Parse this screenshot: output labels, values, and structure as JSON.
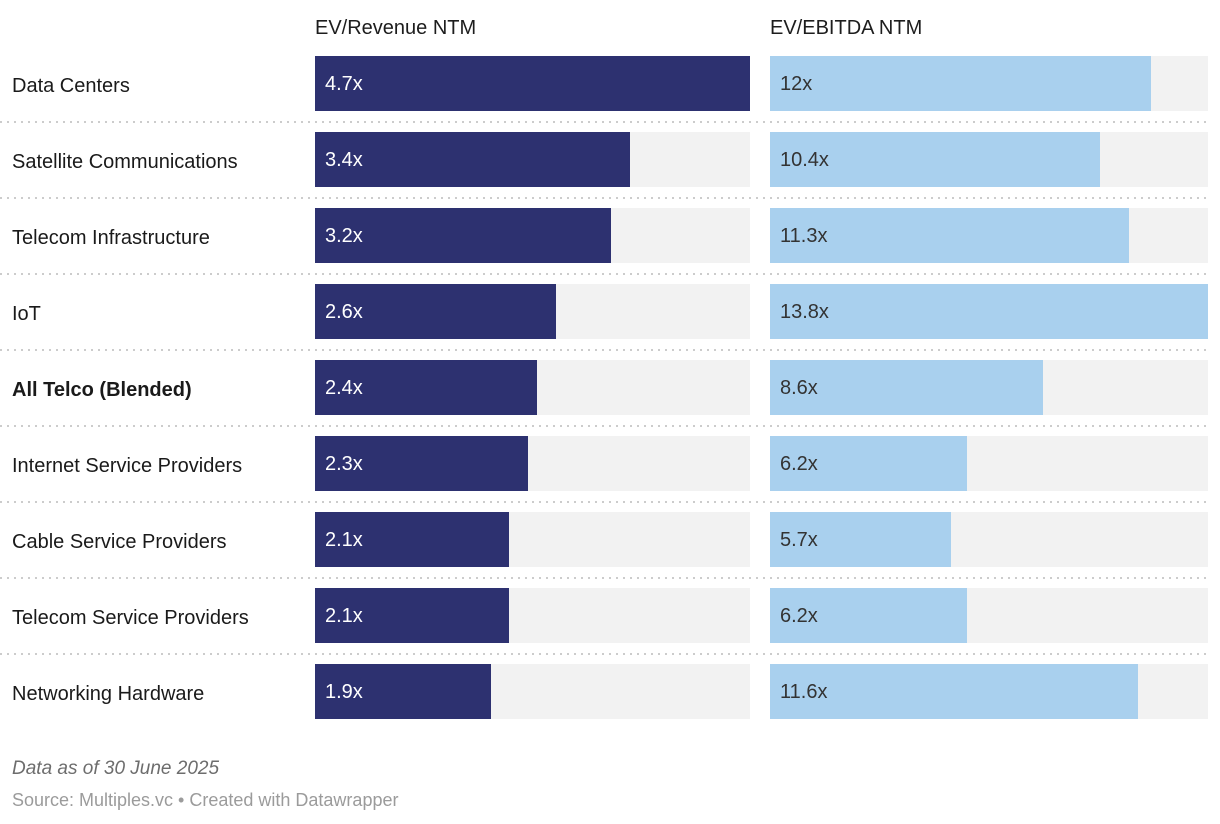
{
  "chart_data": {
    "type": "bar",
    "orientation": "horizontal",
    "title": "",
    "categories": [
      "Data Centers",
      "Satellite Communications",
      "Telecom Infrastructure",
      "IoT",
      "All Telco (Blended)",
      "Internet Service Providers",
      "Cable Service Providers",
      "Telecom Service Providers",
      "Networking Hardware"
    ],
    "highlighted_category": "All Telco (Blended)",
    "series": [
      {
        "name": "EV/Revenue NTM",
        "values": [
          4.7,
          3.4,
          3.2,
          2.6,
          2.4,
          2.3,
          2.1,
          2.1,
          1.9
        ],
        "value_labels": [
          "4.7x",
          "3.4x",
          "3.2x",
          "2.6x",
          "2.4x",
          "2.3x",
          "2.1x",
          "2.1x",
          "1.9x"
        ],
        "axis_min": 0,
        "axis_max": 4.7,
        "bar_color": "#2d3170",
        "value_text_color": "#ffffff"
      },
      {
        "name": "EV/EBITDA NTM",
        "values": [
          12,
          10.4,
          11.3,
          13.8,
          8.6,
          6.2,
          5.7,
          6.2,
          11.6
        ],
        "value_labels": [
          "12x",
          "10.4x",
          "11.3x",
          "13.8x",
          "8.6x",
          "6.2x",
          "5.7x",
          "6.2x",
          "11.6x"
        ],
        "axis_min": 0,
        "axis_max": 13.8,
        "bar_color": "#a9d0ee",
        "value_text_color": "#333333"
      }
    ],
    "grid": false,
    "legend_position": "column-headers",
    "track_color": "#f2f2f2"
  },
  "footer": {
    "note": "Data as of 30 June 2025",
    "source": "Source: Multiples.vc • Created with Datawrapper"
  }
}
